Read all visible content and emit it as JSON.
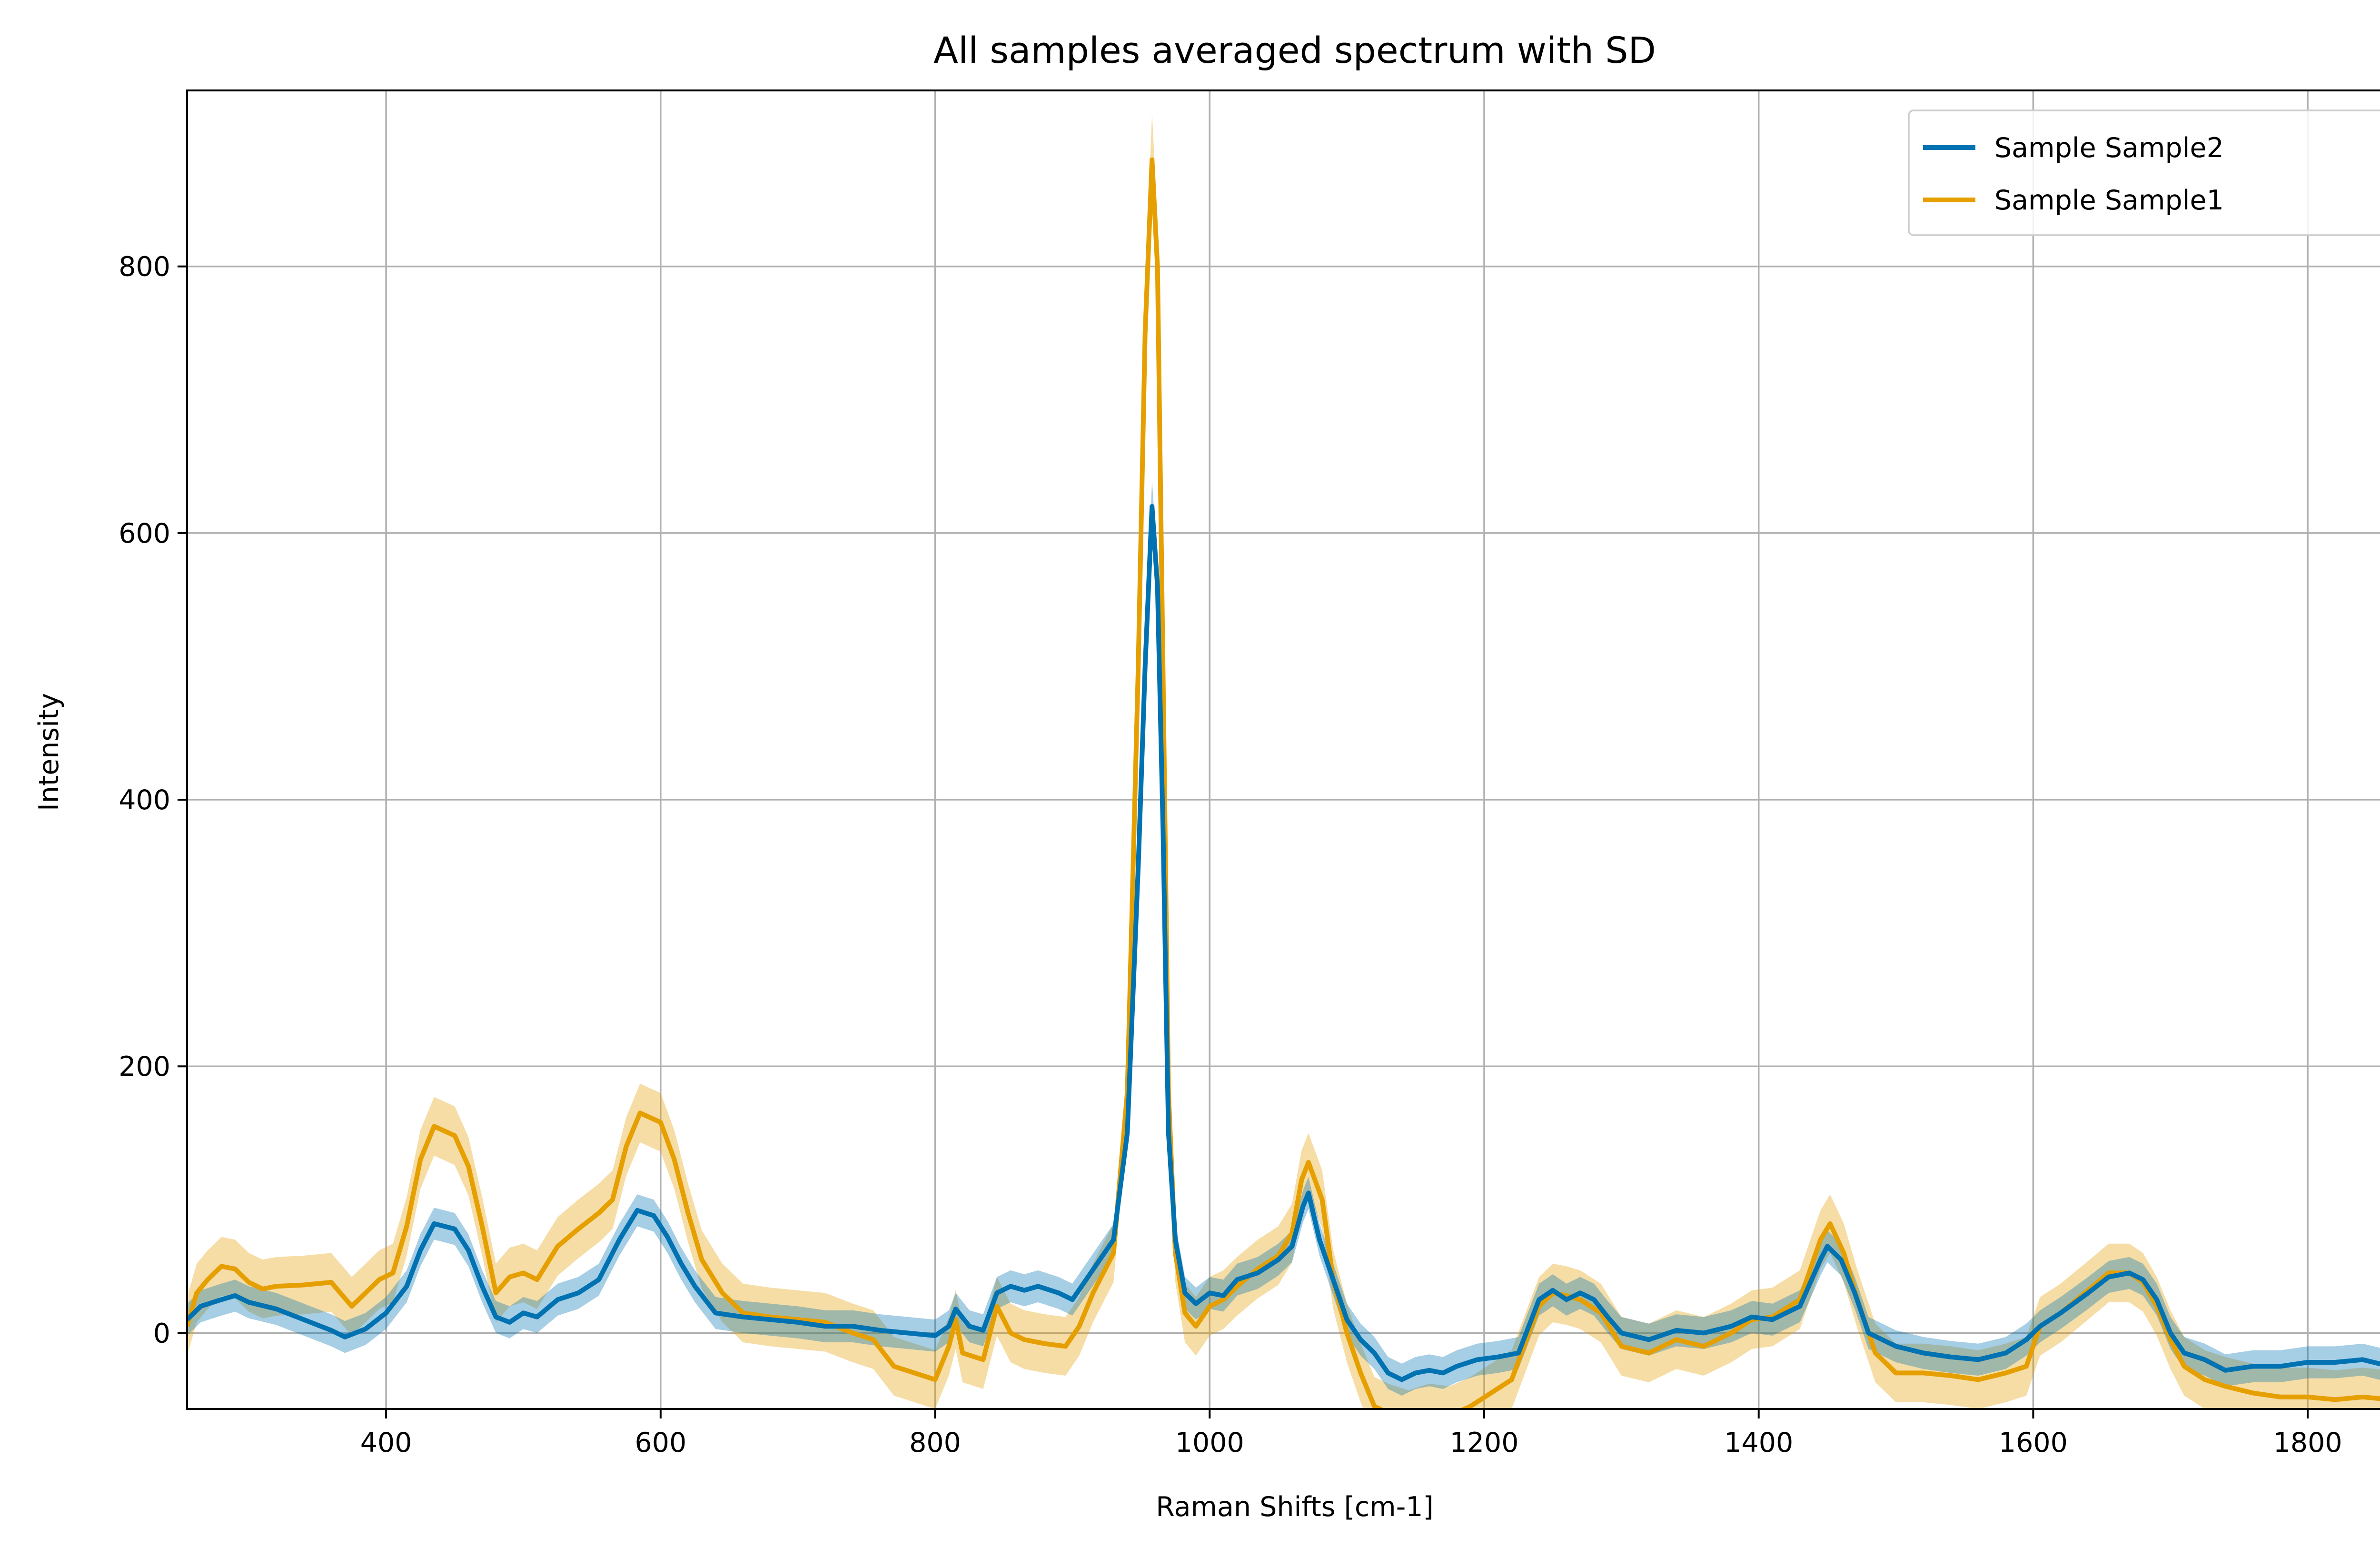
{
  "chart_data": {
    "type": "line",
    "title": "All samples averaged spectrum with SD",
    "xlabel": "Raman Shifts [cm-1]",
    "ylabel": "Intensity",
    "xlim": [
      255,
      1870
    ],
    "ylim": [
      -57,
      932
    ],
    "xticks": [
      400,
      600,
      800,
      1000,
      1200,
      1400,
      1600,
      1800
    ],
    "yticks": [
      0,
      200,
      400,
      600,
      800
    ],
    "grid": true,
    "legend_position": "top-right",
    "colors": {
      "Sample Sample2": "#0072b2",
      "Sample Sample1": "#e69f00"
    },
    "series": [
      {
        "name": "Sample Sample2",
        "color": "#0072b2",
        "sd": 12,
        "points": [
          [
            255,
            10
          ],
          [
            265,
            20
          ],
          [
            280,
            25
          ],
          [
            290,
            28
          ],
          [
            300,
            23
          ],
          [
            320,
            18
          ],
          [
            340,
            10
          ],
          [
            360,
            2
          ],
          [
            370,
            -3
          ],
          [
            385,
            3
          ],
          [
            400,
            15
          ],
          [
            415,
            35
          ],
          [
            425,
            62
          ],
          [
            435,
            82
          ],
          [
            450,
            78
          ],
          [
            460,
            62
          ],
          [
            470,
            35
          ],
          [
            480,
            12
          ],
          [
            490,
            8
          ],
          [
            500,
            15
          ],
          [
            510,
            12
          ],
          [
            525,
            25
          ],
          [
            540,
            30
          ],
          [
            555,
            40
          ],
          [
            570,
            70
          ],
          [
            583,
            92
          ],
          [
            595,
            88
          ],
          [
            605,
            72
          ],
          [
            615,
            52
          ],
          [
            625,
            35
          ],
          [
            640,
            15
          ],
          [
            660,
            12
          ],
          [
            680,
            10
          ],
          [
            700,
            8
          ],
          [
            720,
            5
          ],
          [
            740,
            5
          ],
          [
            760,
            2
          ],
          [
            780,
            0
          ],
          [
            800,
            -2
          ],
          [
            810,
            5
          ],
          [
            815,
            18
          ],
          [
            825,
            5
          ],
          [
            835,
            2
          ],
          [
            845,
            30
          ],
          [
            855,
            35
          ],
          [
            865,
            32
          ],
          [
            875,
            35
          ],
          [
            890,
            30
          ],
          [
            900,
            25
          ],
          [
            910,
            40
          ],
          [
            920,
            55
          ],
          [
            930,
            70
          ],
          [
            940,
            150
          ],
          [
            948,
            350
          ],
          [
            953,
            500
          ],
          [
            958,
            620
          ],
          [
            962,
            560
          ],
          [
            966,
            380
          ],
          [
            970,
            150
          ],
          [
            975,
            70
          ],
          [
            982,
            30
          ],
          [
            990,
            22
          ],
          [
            1000,
            30
          ],
          [
            1010,
            28
          ],
          [
            1020,
            40
          ],
          [
            1035,
            45
          ],
          [
            1050,
            55
          ],
          [
            1060,
            65
          ],
          [
            1068,
            95
          ],
          [
            1072,
            105
          ],
          [
            1080,
            70
          ],
          [
            1090,
            40
          ],
          [
            1100,
            10
          ],
          [
            1110,
            -5
          ],
          [
            1120,
            -15
          ],
          [
            1130,
            -30
          ],
          [
            1140,
            -35
          ],
          [
            1150,
            -30
          ],
          [
            1160,
            -28
          ],
          [
            1170,
            -30
          ],
          [
            1180,
            -25
          ],
          [
            1195,
            -20
          ],
          [
            1210,
            -18
          ],
          [
            1225,
            -15
          ],
          [
            1240,
            25
          ],
          [
            1250,
            32
          ],
          [
            1260,
            25
          ],
          [
            1270,
            30
          ],
          [
            1280,
            25
          ],
          [
            1290,
            12
          ],
          [
            1300,
            0
          ],
          [
            1320,
            -5
          ],
          [
            1340,
            2
          ],
          [
            1360,
            0
          ],
          [
            1380,
            5
          ],
          [
            1395,
            12
          ],
          [
            1410,
            10
          ],
          [
            1430,
            20
          ],
          [
            1445,
            55
          ],
          [
            1450,
            65
          ],
          [
            1460,
            55
          ],
          [
            1470,
            30
          ],
          [
            1480,
            0
          ],
          [
            1490,
            -5
          ],
          [
            1500,
            -10
          ],
          [
            1520,
            -15
          ],
          [
            1540,
            -18
          ],
          [
            1560,
            -20
          ],
          [
            1580,
            -15
          ],
          [
            1595,
            -5
          ],
          [
            1605,
            5
          ],
          [
            1620,
            15
          ],
          [
            1640,
            30
          ],
          [
            1655,
            42
          ],
          [
            1670,
            45
          ],
          [
            1680,
            40
          ],
          [
            1690,
            25
          ],
          [
            1700,
            0
          ],
          [
            1710,
            -15
          ],
          [
            1725,
            -20
          ],
          [
            1740,
            -28
          ],
          [
            1760,
            -25
          ],
          [
            1780,
            -25
          ],
          [
            1800,
            -22
          ],
          [
            1820,
            -22
          ],
          [
            1840,
            -20
          ],
          [
            1860,
            -25
          ],
          [
            1870,
            -28
          ]
        ]
      },
      {
        "name": "Sample Sample1",
        "color": "#e69f00",
        "sd": 22,
        "points": [
          [
            255,
            5
          ],
          [
            262,
            30
          ],
          [
            270,
            40
          ],
          [
            280,
            50
          ],
          [
            290,
            48
          ],
          [
            300,
            38
          ],
          [
            310,
            33
          ],
          [
            320,
            35
          ],
          [
            340,
            36
          ],
          [
            360,
            38
          ],
          [
            375,
            20
          ],
          [
            385,
            30
          ],
          [
            395,
            40
          ],
          [
            405,
            45
          ],
          [
            415,
            80
          ],
          [
            425,
            130
          ],
          [
            435,
            155
          ],
          [
            450,
            148
          ],
          [
            460,
            125
          ],
          [
            470,
            80
          ],
          [
            480,
            30
          ],
          [
            490,
            42
          ],
          [
            500,
            45
          ],
          [
            510,
            40
          ],
          [
            525,
            65
          ],
          [
            540,
            78
          ],
          [
            555,
            90
          ],
          [
            565,
            100
          ],
          [
            575,
            140
          ],
          [
            585,
            165
          ],
          [
            600,
            158
          ],
          [
            610,
            130
          ],
          [
            620,
            90
          ],
          [
            630,
            55
          ],
          [
            645,
            30
          ],
          [
            660,
            15
          ],
          [
            680,
            12
          ],
          [
            700,
            10
          ],
          [
            720,
            8
          ],
          [
            740,
            0
          ],
          [
            755,
            -5
          ],
          [
            770,
            -25
          ],
          [
            785,
            -30
          ],
          [
            800,
            -35
          ],
          [
            810,
            -10
          ],
          [
            815,
            10
          ],
          [
            820,
            -15
          ],
          [
            835,
            -20
          ],
          [
            845,
            20
          ],
          [
            855,
            0
          ],
          [
            865,
            -5
          ],
          [
            880,
            -8
          ],
          [
            895,
            -10
          ],
          [
            905,
            5
          ],
          [
            915,
            30
          ],
          [
            930,
            60
          ],
          [
            940,
            180
          ],
          [
            948,
            500
          ],
          [
            953,
            750
          ],
          [
            958,
            880
          ],
          [
            962,
            800
          ],
          [
            966,
            500
          ],
          [
            970,
            180
          ],
          [
            975,
            60
          ],
          [
            982,
            15
          ],
          [
            990,
            5
          ],
          [
            1000,
            20
          ],
          [
            1010,
            25
          ],
          [
            1020,
            35
          ],
          [
            1035,
            48
          ],
          [
            1050,
            58
          ],
          [
            1060,
            75
          ],
          [
            1067,
            115
          ],
          [
            1072,
            128
          ],
          [
            1082,
            100
          ],
          [
            1090,
            40
          ],
          [
            1100,
            0
          ],
          [
            1110,
            -30
          ],
          [
            1120,
            -55
          ],
          [
            1130,
            -60
          ],
          [
            1145,
            -65
          ],
          [
            1160,
            -60
          ],
          [
            1175,
            -62
          ],
          [
            1190,
            -55
          ],
          [
            1205,
            -45
          ],
          [
            1220,
            -35
          ],
          [
            1240,
            20
          ],
          [
            1250,
            30
          ],
          [
            1260,
            28
          ],
          [
            1270,
            25
          ],
          [
            1285,
            15
          ],
          [
            1300,
            -10
          ],
          [
            1320,
            -15
          ],
          [
            1340,
            -5
          ],
          [
            1360,
            -10
          ],
          [
            1380,
            0
          ],
          [
            1395,
            10
          ],
          [
            1410,
            12
          ],
          [
            1430,
            25
          ],
          [
            1445,
            70
          ],
          [
            1452,
            82
          ],
          [
            1462,
            60
          ],
          [
            1472,
            25
          ],
          [
            1485,
            -15
          ],
          [
            1500,
            -30
          ],
          [
            1520,
            -30
          ],
          [
            1540,
            -32
          ],
          [
            1560,
            -35
          ],
          [
            1580,
            -30
          ],
          [
            1595,
            -25
          ],
          [
            1605,
            5
          ],
          [
            1620,
            15
          ],
          [
            1640,
            32
          ],
          [
            1655,
            45
          ],
          [
            1670,
            45
          ],
          [
            1680,
            38
          ],
          [
            1690,
            20
          ],
          [
            1700,
            -5
          ],
          [
            1710,
            -25
          ],
          [
            1725,
            -35
          ],
          [
            1740,
            -40
          ],
          [
            1760,
            -45
          ],
          [
            1780,
            -48
          ],
          [
            1800,
            -48
          ],
          [
            1820,
            -50
          ],
          [
            1840,
            -48
          ],
          [
            1860,
            -50
          ],
          [
            1870,
            -52
          ]
        ]
      }
    ]
  }
}
